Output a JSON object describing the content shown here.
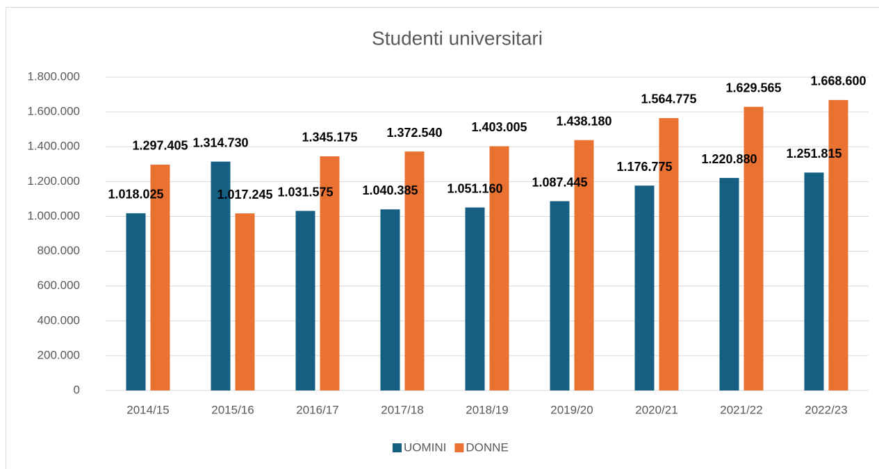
{
  "chart_data": {
    "type": "bar",
    "title": "Studenti universitari",
    "categories": [
      "2014/15",
      "2015/16",
      "2016/17",
      "2017/18",
      "2018/19",
      "2019/20",
      "2020/21",
      "2021/22",
      "2022/23"
    ],
    "series": [
      {
        "name": "UOMINI",
        "color": "#156082",
        "values": [
          1018025,
          1314730,
          1031575,
          1040385,
          1051160,
          1087445,
          1176775,
          1220880,
          1251815
        ],
        "value_labels": [
          "1.018.025",
          "1.314.730",
          "1.031.575",
          "1.040.385",
          "1.051.160",
          "1.087.445",
          "1.176.775",
          "1.220.880",
          "1.251.815"
        ]
      },
      {
        "name": "DONNE",
        "color": "#e97132",
        "values": [
          1297405,
          1017245,
          1345175,
          1372540,
          1403005,
          1438180,
          1564775,
          1629565,
          1668600
        ],
        "value_labels": [
          "1.297.405",
          "1.017.245",
          "1.345.175",
          "1.372.540",
          "1.403.005",
          "1.438.180",
          "1.564.775",
          "1.629.565",
          "1.668.600"
        ]
      }
    ],
    "ylim": [
      0,
      1800000
    ],
    "yticks": [
      0,
      {
        "value": 200000,
        "label": "200.000"
      },
      {
        "value": 400000,
        "label": "400.000"
      },
      {
        "value": 600000,
        "label": "600.000"
      },
      {
        "value": 800000,
        "label": "800.000"
      },
      {
        "value": 1000000,
        "label": "1.000.000"
      },
      {
        "value": 1200000,
        "label": "1.200.000"
      },
      {
        "value": 1400000,
        "label": "1.400.000"
      },
      {
        "value": 1600000,
        "label": "1.600.000"
      },
      {
        "value": 1800000,
        "label": "1.800.000"
      }
    ],
    "grid": true,
    "legend": "bottom"
  }
}
